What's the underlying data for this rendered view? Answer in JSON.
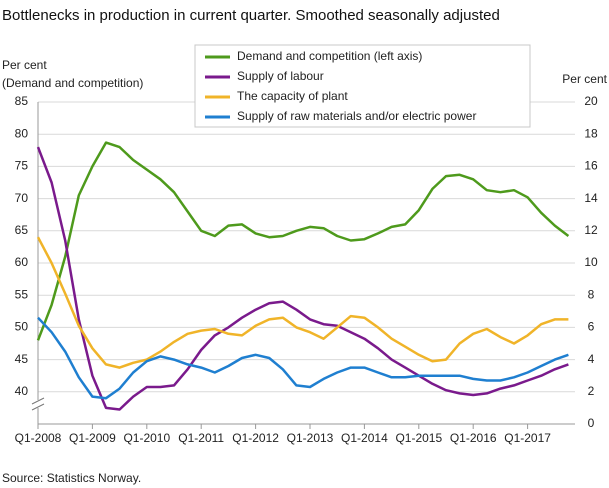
{
  "chart_data": {
    "type": "line",
    "title": "Bottlenecks in production in current quarter. Smoothed seasonally adjusted",
    "y_label": "Per cent",
    "y_label_note": "(Demand  and competition)",
    "y2_label": "Per cent",
    "source": "Source: Statistics Norway.",
    "categories": [
      "Q1-2008",
      null,
      null,
      null,
      "Q1-2009",
      null,
      null,
      null,
      "Q1-2010",
      null,
      null,
      null,
      "Q1-2011",
      null,
      null,
      null,
      "Q1-2012",
      null,
      null,
      null,
      "Q1-2013",
      null,
      null,
      null,
      "Q1-2014",
      null,
      null,
      null,
      "Q1-2015",
      null,
      null,
      null,
      "Q1-2016",
      null,
      null,
      null,
      "Q1-2017",
      null,
      null,
      null
    ],
    "ylim": [
      35,
      85
    ],
    "yticks": [
      40,
      45,
      50,
      55,
      60,
      65,
      70,
      75,
      80,
      85
    ],
    "y2lim": [
      0,
      20
    ],
    "y2ticks": [
      0,
      2,
      4,
      6,
      8,
      10,
      12,
      14,
      16,
      18,
      20
    ],
    "grid": true,
    "series": [
      {
        "name": "Demand and competition (left axis)",
        "color": "#4e9a1c",
        "axis": "y",
        "values": [
          48,
          53.5,
          61,
          70.5,
          75,
          78.7,
          78,
          76,
          74.5,
          73,
          71,
          68,
          65,
          64.2,
          65.8,
          66,
          64.6,
          64,
          64.2,
          65,
          65.6,
          65.4,
          64.2,
          63.5,
          63.7,
          64.6,
          65.6,
          66,
          68.2,
          71.5,
          73.5,
          73.7,
          73,
          71.3,
          71,
          71.3,
          70.2,
          67.8,
          65.8,
          64.2
        ]
      },
      {
        "name": "Supply of labour",
        "color": "#7a1a8c",
        "axis": "y2",
        "values": [
          17.2,
          15,
          11.4,
          6.5,
          3,
          1,
          0.9,
          1.7,
          2.3,
          2.3,
          2.4,
          3.4,
          4.6,
          5.5,
          6,
          6.6,
          7.1,
          7.5,
          7.6,
          7.1,
          6.5,
          6.2,
          6.1,
          5.7,
          5.3,
          4.7,
          4,
          3.5,
          3,
          2.5,
          2.1,
          1.9,
          1.8,
          1.9,
          2.2,
          2.4,
          2.7,
          3,
          3.4,
          3.7
        ]
      },
      {
        "name": "The capacity of plant",
        "color": "#f0b429",
        "axis": "y2",
        "values": [
          11.6,
          10,
          8.1,
          6.1,
          4.7,
          3.7,
          3.5,
          3.8,
          4,
          4.5,
          5.1,
          5.6,
          5.8,
          5.9,
          5.6,
          5.5,
          6.1,
          6.5,
          6.6,
          6,
          5.7,
          5.3,
          6,
          6.7,
          6.6,
          6,
          5.3,
          4.8,
          4.3,
          3.9,
          4,
          5,
          5.6,
          5.9,
          5.4,
          5,
          5.5,
          6.2,
          6.5,
          6.5
        ]
      },
      {
        "name": "Supply of raw materials and/or electric power",
        "color": "#1f7fd0",
        "axis": "y2",
        "values": [
          6.6,
          5.7,
          4.5,
          2.9,
          1.7,
          1.6,
          2.2,
          3.2,
          3.9,
          4.2,
          4,
          3.7,
          3.5,
          3.2,
          3.6,
          4.1,
          4.3,
          4.1,
          3.4,
          2.4,
          2.3,
          2.8,
          3.2,
          3.5,
          3.5,
          3.2,
          2.9,
          2.9,
          3,
          3,
          3,
          3,
          2.8,
          2.7,
          2.7,
          2.9,
          3.2,
          3.6,
          4,
          4.3
        ]
      }
    ]
  }
}
